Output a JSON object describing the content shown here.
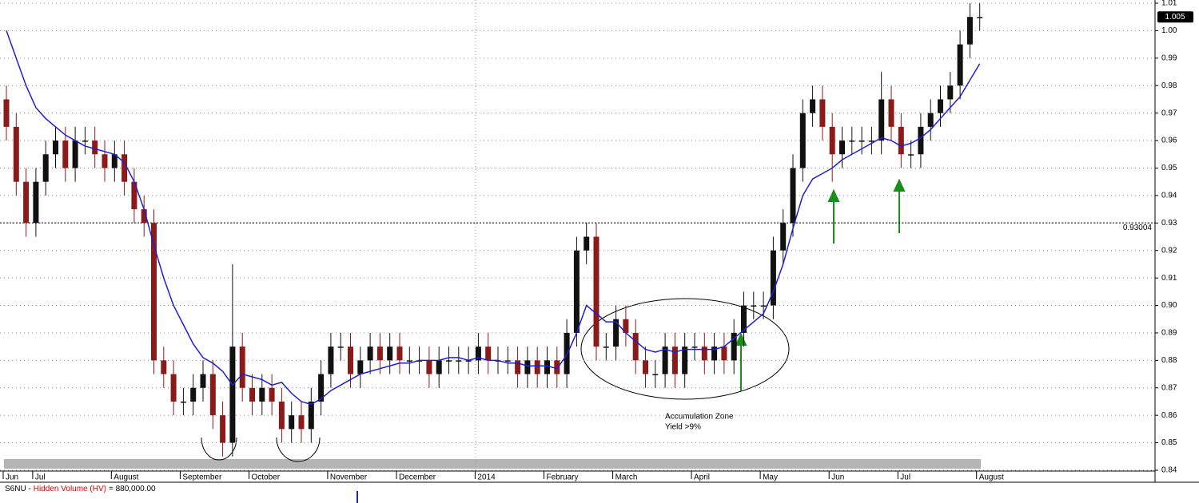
{
  "chart_data": {
    "type": "candlestick",
    "categories": [
      "Jun",
      null,
      null,
      "Jul",
      null,
      null,
      null,
      null,
      null,
      null,
      null,
      "August",
      null,
      null,
      null,
      null,
      null,
      null,
      "September",
      null,
      null,
      null,
      null,
      null,
      null,
      "October",
      null,
      null,
      null,
      null,
      null,
      null,
      null,
      "November",
      null,
      null,
      null,
      null,
      null,
      null,
      "December",
      null,
      null,
      null,
      null,
      null,
      null,
      null,
      "2014",
      null,
      null,
      null,
      null,
      null,
      null,
      "February",
      null,
      null,
      null,
      null,
      null,
      null,
      "March",
      null,
      null,
      null,
      null,
      null,
      null,
      null,
      "April",
      null,
      null,
      null,
      null,
      null,
      null,
      "May",
      null,
      null,
      null,
      null,
      null,
      null,
      "Jun",
      null,
      null,
      null,
      null,
      null,
      null,
      "Jul",
      null,
      null,
      null,
      null,
      null,
      null,
      null,
      "August"
    ],
    "open": [
      0.975,
      0.965,
      0.945,
      0.93,
      0.945,
      0.955,
      0.96,
      0.95,
      0.96,
      0.96,
      0.955,
      0.95,
      0.955,
      0.945,
      0.935,
      0.93,
      0.88,
      0.875,
      0.865,
      0.865,
      0.87,
      0.875,
      0.86,
      0.85,
      0.885,
      0.87,
      0.865,
      0.87,
      0.865,
      0.855,
      0.86,
      0.855,
      0.865,
      0.875,
      0.885,
      0.885,
      0.875,
      0.88,
      0.885,
      0.88,
      0.885,
      0.88,
      0.88,
      0.88,
      0.875,
      0.88,
      0.88,
      0.88,
      0.88,
      0.885,
      0.88,
      0.88,
      0.88,
      0.875,
      0.88,
      0.875,
      0.88,
      0.875,
      0.89,
      0.92,
      0.925,
      0.885,
      0.885,
      0.895,
      0.89,
      0.88,
      0.875,
      0.875,
      0.885,
      0.875,
      0.885,
      0.885,
      0.88,
      0.885,
      0.88,
      0.89,
      0.9,
      0.9,
      0.9,
      0.92,
      0.93,
      0.95,
      0.97,
      0.975,
      0.965,
      0.955,
      0.96,
      0.96,
      0.96,
      0.96,
      0.975,
      0.965,
      0.955,
      0.955,
      0.965,
      0.97,
      0.975,
      0.98,
      0.995,
      1.005
    ],
    "high": [
      0.98,
      0.97,
      0.95,
      0.95,
      0.96,
      0.965,
      0.965,
      0.965,
      0.965,
      0.965,
      0.96,
      0.96,
      0.96,
      0.95,
      0.94,
      0.935,
      0.885,
      0.88,
      0.87,
      0.875,
      0.88,
      0.88,
      0.865,
      0.915,
      0.89,
      0.875,
      0.875,
      0.875,
      0.87,
      0.865,
      0.865,
      0.87,
      0.88,
      0.89,
      0.89,
      0.89,
      0.885,
      0.89,
      0.89,
      0.89,
      0.89,
      0.885,
      0.885,
      0.885,
      0.885,
      0.885,
      0.885,
      0.885,
      0.89,
      0.89,
      0.885,
      0.885,
      0.885,
      0.885,
      0.885,
      0.885,
      0.885,
      0.895,
      0.925,
      0.93,
      0.93,
      0.89,
      0.9,
      0.9,
      0.895,
      0.885,
      0.88,
      0.89,
      0.89,
      0.89,
      0.89,
      0.89,
      0.89,
      0.89,
      0.895,
      0.905,
      0.905,
      0.905,
      0.925,
      0.935,
      0.955,
      0.975,
      0.98,
      0.98,
      0.97,
      0.965,
      0.965,
      0.965,
      0.965,
      0.985,
      0.98,
      0.97,
      0.96,
      0.97,
      0.975,
      0.98,
      0.985,
      1,
      1.01,
      1.01
    ],
    "low": [
      0.96,
      0.94,
      0.925,
      0.925,
      0.94,
      0.95,
      0.945,
      0.945,
      0.955,
      0.95,
      0.945,
      0.945,
      0.94,
      0.93,
      0.925,
      0.875,
      0.87,
      0.86,
      0.86,
      0.86,
      0.865,
      0.855,
      0.845,
      0.845,
      0.865,
      0.86,
      0.86,
      0.86,
      0.85,
      0.85,
      0.85,
      0.85,
      0.86,
      0.87,
      0.88,
      0.87,
      0.87,
      0.875,
      0.875,
      0.875,
      0.875,
      0.875,
      0.875,
      0.87,
      0.87,
      0.875,
      0.875,
      0.875,
      0.875,
      0.875,
      0.875,
      0.875,
      0.87,
      0.87,
      0.87,
      0.87,
      0.87,
      0.87,
      0.885,
      0.915,
      0.88,
      0.88,
      0.88,
      0.885,
      0.875,
      0.87,
      0.87,
      0.87,
      0.87,
      0.87,
      0.88,
      0.875,
      0.875,
      0.875,
      0.875,
      0.885,
      0.895,
      0.895,
      0.895,
      0.915,
      0.925,
      0.945,
      0.965,
      0.96,
      0.945,
      0.95,
      0.955,
      0.955,
      0.955,
      0.955,
      0.96,
      0.95,
      0.95,
      0.95,
      0.96,
      0.965,
      0.97,
      0.975,
      0.99,
      1
    ],
    "close": [
      0.965,
      0.945,
      0.93,
      0.945,
      0.955,
      0.96,
      0.95,
      0.96,
      0.96,
      0.955,
      0.95,
      0.955,
      0.945,
      0.935,
      0.93,
      0.88,
      0.875,
      0.865,
      0.865,
      0.87,
      0.875,
      0.86,
      0.85,
      0.885,
      0.87,
      0.865,
      0.87,
      0.865,
      0.855,
      0.86,
      0.855,
      0.865,
      0.875,
      0.885,
      0.885,
      0.875,
      0.88,
      0.885,
      0.88,
      0.885,
      0.88,
      0.88,
      0.88,
      0.875,
      0.88,
      0.88,
      0.88,
      0.88,
      0.885,
      0.88,
      0.88,
      0.88,
      0.875,
      0.88,
      0.875,
      0.88,
      0.875,
      0.89,
      0.92,
      0.925,
      0.885,
      0.885,
      0.895,
      0.89,
      0.88,
      0.875,
      0.875,
      0.885,
      0.875,
      0.885,
      0.885,
      0.88,
      0.885,
      0.88,
      0.89,
      0.9,
      0.9,
      0.9,
      0.92,
      0.93,
      0.95,
      0.97,
      0.975,
      0.965,
      0.955,
      0.96,
      0.96,
      0.96,
      0.96,
      0.975,
      0.965,
      0.955,
      0.955,
      0.965,
      0.97,
      0.975,
      0.98,
      0.995,
      1.005,
      1.005
    ],
    "up_color": "#111111",
    "down_color": "#8b1a1a",
    "moving_average": {
      "color": "#1f1fd0",
      "values": [
        1.0,
        0.99,
        0.98,
        0.972,
        0.968,
        0.965,
        0.962,
        0.96,
        0.958,
        0.957,
        0.956,
        0.955,
        0.952,
        0.945,
        0.935,
        0.922,
        0.91,
        0.9,
        0.893,
        0.886,
        0.881,
        0.879,
        0.876,
        0.871,
        0.875,
        0.874,
        0.873,
        0.871,
        0.872,
        0.868,
        0.865,
        0.864,
        0.866,
        0.869,
        0.871,
        0.873,
        0.875,
        0.876,
        0.877,
        0.878,
        0.879,
        0.879,
        0.88,
        0.88,
        0.88,
        0.881,
        0.881,
        0.88,
        0.881,
        0.88,
        0.88,
        0.879,
        0.879,
        0.878,
        0.878,
        0.878,
        0.877,
        0.882,
        0.89,
        0.9,
        0.897,
        0.894,
        0.894,
        0.89,
        0.887,
        0.884,
        0.883,
        0.884,
        0.883,
        0.884,
        0.884,
        0.884,
        0.884,
        0.885,
        0.888,
        0.891,
        0.894,
        0.897,
        0.905,
        0.915,
        0.928,
        0.94,
        0.946,
        0.948,
        0.95,
        0.953,
        0.955,
        0.957,
        0.959,
        0.961,
        0.96,
        0.958,
        0.959,
        0.961,
        0.964,
        0.968,
        0.972,
        0.976,
        0.982,
        0.988
      ]
    },
    "ylim": [
      0.84,
      1.01
    ],
    "yticks": [
      0.84,
      0.85,
      0.86,
      0.87,
      0.88,
      0.89,
      {
        "value": 0.9,
        "label": "0.90"
      },
      0.91,
      0.92,
      0.93,
      0.94,
      0.95,
      0.96,
      0.97,
      0.98,
      0.99,
      {
        "value": 1,
        "label": "1.00"
      },
      1.01
    ],
    "grid": true,
    "reference_line": 0.93004,
    "last_price": 1.005,
    "annotations": [
      "Accumulation Zone",
      "Yield >9%"
    ],
    "footer": {
      "symbol": "S6NU -",
      "indicator": "Hidden Volume (HV)",
      "value_text": "= 880,000.00"
    }
  }
}
